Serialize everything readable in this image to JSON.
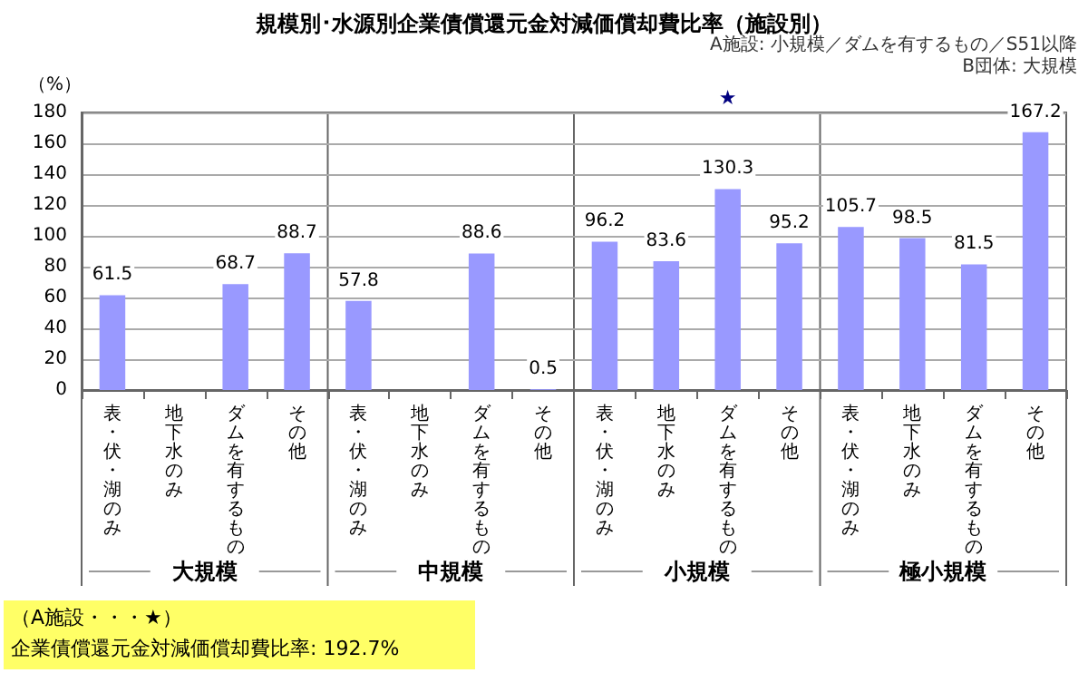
{
  "chart_data": {
    "type": "bar",
    "title": "規模別･水源別企業債償還元金対減価償却費比率（施設別）",
    "ylabel": "（%）",
    "categories": [
      "表・伏・湖のみ",
      "地下水のみ",
      "ダムを有するもの",
      "その他",
      "表・伏・湖のみ",
      "地下水のみ",
      "ダムを有するもの",
      "その他",
      "表・伏・湖のみ",
      "地下水のみ",
      "ダムを有するもの",
      "その他",
      "表・伏・湖のみ",
      "地下水のみ",
      "ダムを有するもの",
      "その他"
    ],
    "values": [
      61.5,
      null,
      68.7,
      88.7,
      57.8,
      null,
      88.6,
      0.5,
      96.2,
      83.6,
      130.3,
      95.2,
      105.7,
      98.5,
      81.5,
      167.2
    ],
    "color": "#9999ff",
    "data_labels": true,
    "ylim": [
      0,
      180
    ],
    "yticks": [
      0,
      20,
      40,
      60,
      80,
      100,
      120,
      140,
      160,
      180
    ],
    "grid": "y",
    "annotations": [
      "大規模",
      "中規模",
      "小規模",
      "極小規模",
      "★",
      "A施設: 小規模／ダムを有するもの／S51以降",
      "B団体: 大規模",
      "（A施設・・・★）",
      "企業債償還元金対減価償却費比率: 192.7%"
    ]
  }
}
